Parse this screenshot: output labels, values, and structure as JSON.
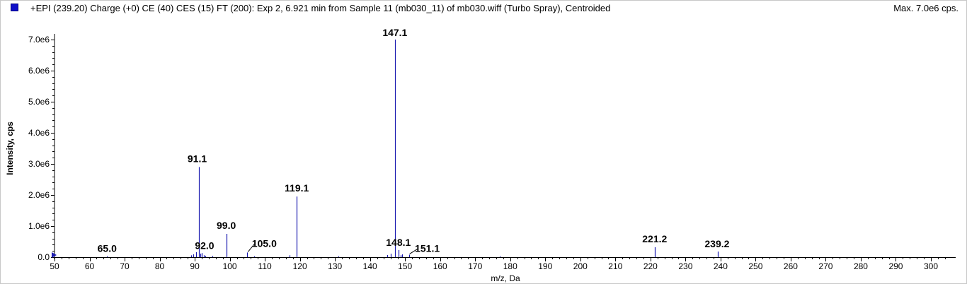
{
  "header": {
    "title": "+EPI (239.20) Charge (+0) CE (40) CES (15) FT (200): Exp 2, 6.921 min from Sample 11 (mb030_11) of mb030.wiff (Turbo Spray), Centroided",
    "max_label": "Max. 7.0e6 cps."
  },
  "colors": {
    "series": "#1a1ab0",
    "legend_swatch": "#1010c8"
  },
  "chart_data": {
    "type": "bar",
    "title": "+EPI (239.20) Charge (+0) CE (40) CES (15) FT (200): Exp 2, 6.921 min from Sample 11 (mb030_11) of mb030.wiff (Turbo Spray), Centroided",
    "xlabel": "m/z, Da",
    "ylabel": "Intensity, cps",
    "xlim": [
      50,
      305
    ],
    "ylim": [
      0,
      7000000
    ],
    "x_ticks": [
      50,
      60,
      70,
      80,
      90,
      100,
      110,
      120,
      130,
      140,
      150,
      160,
      170,
      180,
      190,
      200,
      210,
      220,
      230,
      240,
      250,
      260,
      270,
      280,
      290,
      300
    ],
    "x_tick_labels": [
      "50",
      "60",
      "70",
      "80",
      "90",
      "100",
      "110",
      "120",
      "130",
      "140",
      "150",
      "160",
      "170",
      "180",
      "190",
      "200",
      "210",
      "220",
      "230",
      "240",
      "250",
      "260",
      "270",
      "280",
      "290",
      "300"
    ],
    "y_ticks": [
      0,
      1000000,
      2000000,
      3000000,
      4000000,
      5000000,
      6000000,
      7000000
    ],
    "y_tick_labels": [
      "0.0",
      "1.0e6",
      "2.0e6",
      "3.0e6",
      "4.0e6",
      "5.0e6",
      "6.0e6",
      "7.0e6"
    ],
    "peaks": [
      {
        "mz": 65.0,
        "intensity": 30000
      },
      {
        "mz": 89.0,
        "intensity": 60000
      },
      {
        "mz": 89.6,
        "intensity": 90000
      },
      {
        "mz": 90.3,
        "intensity": 160000
      },
      {
        "mz": 91.1,
        "intensity": 2900000
      },
      {
        "mz": 91.7,
        "intensity": 110000
      },
      {
        "mz": 92.0,
        "intensity": 130000
      },
      {
        "mz": 92.6,
        "intensity": 60000
      },
      {
        "mz": 93.1,
        "intensity": 40000
      },
      {
        "mz": 95.0,
        "intensity": 40000
      },
      {
        "mz": 99.0,
        "intensity": 750000
      },
      {
        "mz": 105.0,
        "intensity": 150000
      },
      {
        "mz": 107.0,
        "intensity": 30000
      },
      {
        "mz": 117.0,
        "intensity": 60000
      },
      {
        "mz": 119.1,
        "intensity": 1950000
      },
      {
        "mz": 131.0,
        "intensity": 30000
      },
      {
        "mz": 145.0,
        "intensity": 70000
      },
      {
        "mz": 146.0,
        "intensity": 110000
      },
      {
        "mz": 147.1,
        "intensity": 7000000
      },
      {
        "mz": 148.1,
        "intensity": 230000
      },
      {
        "mz": 148.7,
        "intensity": 60000
      },
      {
        "mz": 149.2,
        "intensity": 90000
      },
      {
        "mz": 151.1,
        "intensity": 80000
      },
      {
        "mz": 177.0,
        "intensity": 30000
      },
      {
        "mz": 221.2,
        "intensity": 320000
      },
      {
        "mz": 239.2,
        "intensity": 180000
      }
    ],
    "peak_labels": [
      {
        "text": "65.0",
        "mz": 65.0
      },
      {
        "text": "91.1",
        "mz": 91.1
      },
      {
        "text": "92.0",
        "mz": 92.0
      },
      {
        "text": "99.0",
        "mz": 99.0
      },
      {
        "text": "105.0",
        "mz": 105.0
      },
      {
        "text": "119.1",
        "mz": 119.1
      },
      {
        "text": "147.1",
        "mz": 147.1
      },
      {
        "text": "148.1",
        "mz": 148.1
      },
      {
        "text": "151.1",
        "mz": 151.1
      },
      {
        "text": "221.2",
        "mz": 221.2
      },
      {
        "text": "239.2",
        "mz": 239.2
      }
    ],
    "grid": false,
    "legend": "none"
  }
}
